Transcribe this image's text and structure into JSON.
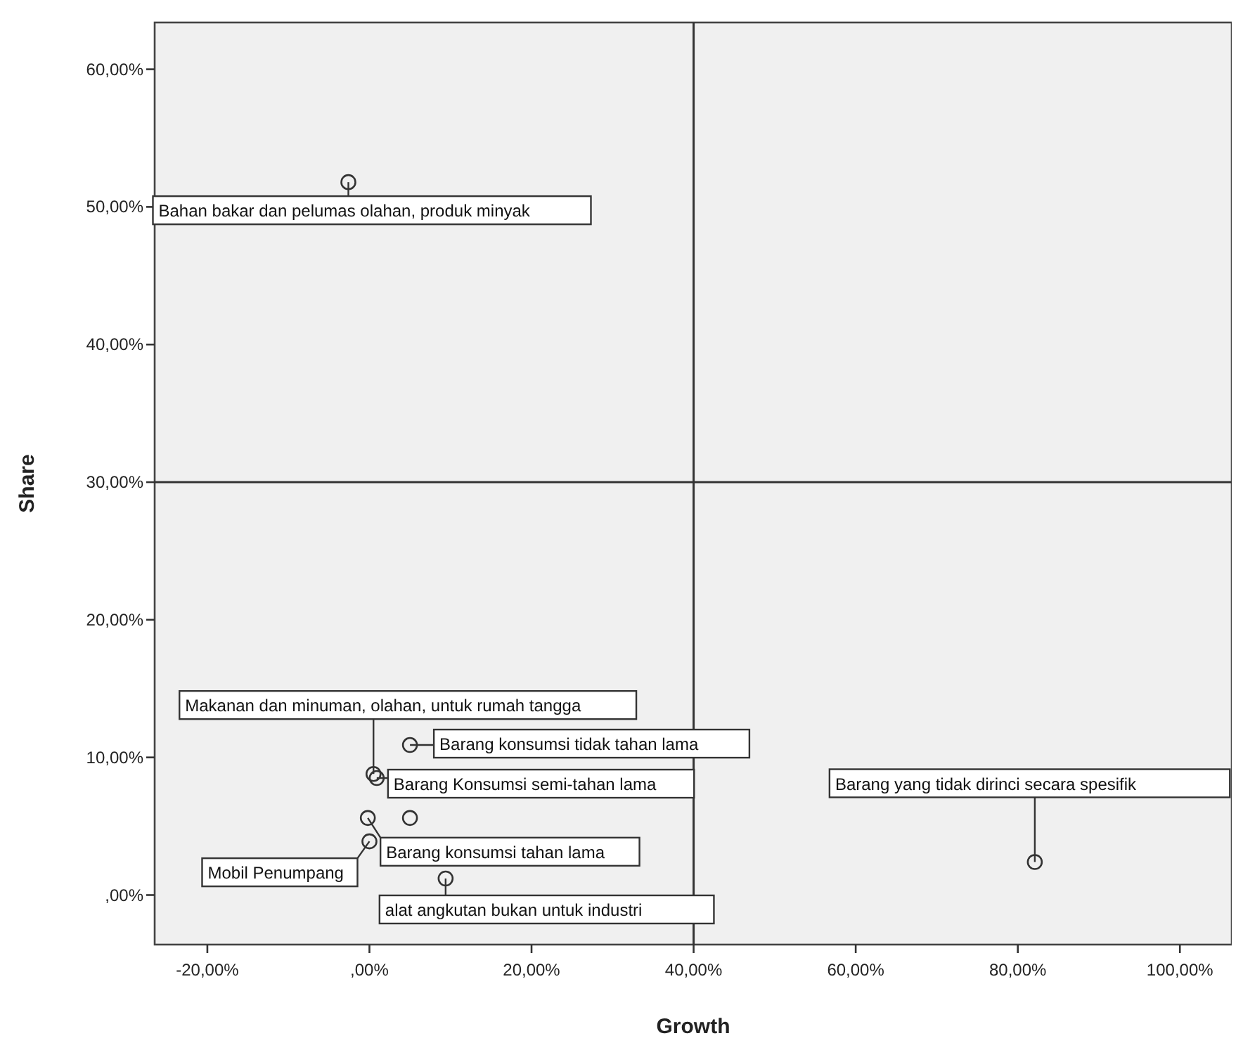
{
  "chart_data": {
    "type": "scatter",
    "xlabel": "Growth",
    "ylabel": "Share",
    "x": [
      -2.6,
      0.5,
      5.0,
      0.9,
      -0.2,
      5.0,
      0.0,
      9.4,
      82.1
    ],
    "values": [
      51.8,
      8.8,
      10.9,
      8.5,
      5.6,
      5.6,
      3.9,
      1.2,
      2.4
    ],
    "color": "#333333",
    "marker": "circle",
    "grid": false,
    "xlim": [
      -26.5,
      106.4
    ],
    "ylim": [
      -3.6,
      63.4
    ],
    "xticks": [
      {
        "value": -20,
        "label": "-20,00%"
      },
      {
        "value": 0,
        "label": ",00%"
      },
      {
        "value": 20,
        "label": "20,00%"
      },
      {
        "value": 40,
        "label": "40,00%"
      },
      {
        "value": 60,
        "label": "60,00%"
      },
      {
        "value": 80,
        "label": "80,00%"
      },
      {
        "value": 100,
        "label": "100,00%"
      }
    ],
    "yticks": [
      {
        "value": 0,
        "label": ",00%"
      },
      {
        "value": 10,
        "label": "10,00%"
      },
      {
        "value": 20,
        "label": "20,00%"
      },
      {
        "value": 30,
        "label": "30,00%"
      },
      {
        "value": 40,
        "label": "40,00%"
      },
      {
        "value": 50,
        "label": "50,00%"
      },
      {
        "value": 60,
        "label": "60,00%"
      }
    ],
    "ref_lines": [
      {
        "axis": "y",
        "value": 30,
        "color": "#333333"
      },
      {
        "axis": "x",
        "value": 40,
        "color": "#333333"
      }
    ],
    "annotations": [
      {
        "text": "Bahan bakar dan pelumas olahan, produk minyak",
        "x": -2.6,
        "y": 51.8
      },
      {
        "text": "Makanan dan minuman, olahan, untuk rumah tangga",
        "x": 0.5,
        "y": 8.8
      },
      {
        "text": "Barang konsumsi tidak tahan lama",
        "x": 5.0,
        "y": 10.9
      },
      {
        "text": "Barang Konsumsi semi-tahan lama",
        "x": 0.9,
        "y": 8.5
      },
      {
        "text": "Barang konsumsi tahan lama",
        "x": -0.2,
        "y": 5.6
      },
      {
        "text": "Mobil Penumpang",
        "x": 0.0,
        "y": 3.9
      },
      {
        "text": "alat angkutan bukan untuk industri",
        "x": 9.4,
        "y": 1.2
      },
      {
        "text": "Barang yang tidak dirinci secara spesifik",
        "x": 82.1,
        "y": 2.4
      }
    ]
  }
}
